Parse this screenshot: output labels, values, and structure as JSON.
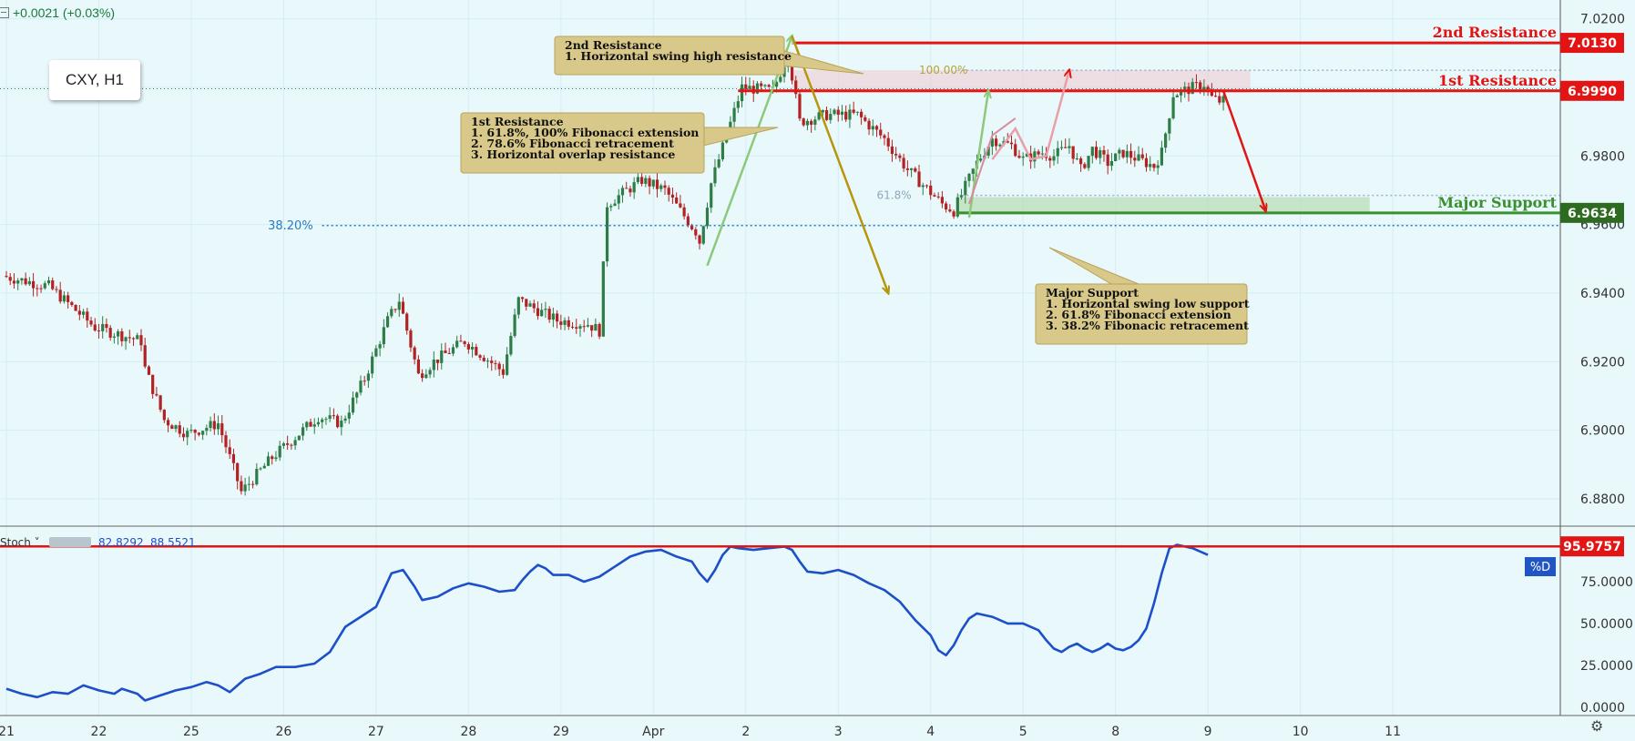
{
  "header": {
    "change": "+0.0021 (+0.03%)"
  },
  "symbol": "CXY, H1",
  "colors": {
    "bg": "#e8f8fb",
    "up": "#2e7d46",
    "down": "#b22222",
    "resistance": "#e31414",
    "support": "#3a8f2e",
    "stoch": "#1d4fc9",
    "fib": "#2a7bbf",
    "note_bg": "#d8c98a",
    "note_border": "#b9a25a"
  },
  "chart_data": {
    "type": "candlestick",
    "symbol": "CXY",
    "timeframe": "H1",
    "ylim": [
      6.872,
      7.0255
    ],
    "y_ticks": [
      "7.0200",
      "7.0000",
      "6.9800",
      "6.9600",
      "6.9400",
      "6.9200",
      "6.9000",
      "6.8800"
    ],
    "x_ticks": [
      {
        "label": "21",
        "idx": 0
      },
      {
        "label": "22",
        "idx": 24
      },
      {
        "label": "25",
        "idx": 48
      },
      {
        "label": "26",
        "idx": 72
      },
      {
        "label": "27",
        "idx": 96
      },
      {
        "label": "28",
        "idx": 120
      },
      {
        "label": "29",
        "idx": 144
      },
      {
        "label": "Apr",
        "idx": 168
      },
      {
        "label": "2",
        "idx": 192
      },
      {
        "label": "3",
        "idx": 216
      },
      {
        "label": "4",
        "idx": 240
      },
      {
        "label": "5",
        "idx": 264
      },
      {
        "label": "8",
        "idx": 288
      },
      {
        "label": "9",
        "idx": 312
      },
      {
        "label": "10",
        "idx": 336
      },
      {
        "label": "11",
        "idx": 360
      }
    ],
    "price_path": [
      [
        0,
        6.945
      ],
      [
        12,
        6.942
      ],
      [
        24,
        6.93
      ],
      [
        36,
        6.926
      ],
      [
        37,
        6.918
      ],
      [
        42,
        6.903
      ],
      [
        48,
        6.899
      ],
      [
        56,
        6.902
      ],
      [
        62,
        6.882
      ],
      [
        70,
        6.892
      ],
      [
        82,
        6.904
      ],
      [
        88,
        6.902
      ],
      [
        94,
        6.915
      ],
      [
        100,
        6.932
      ],
      [
        103,
        6.938
      ],
      [
        108,
        6.916
      ],
      [
        112,
        6.92
      ],
      [
        120,
        6.926
      ],
      [
        130,
        6.917
      ],
      [
        134,
        6.938
      ],
      [
        144,
        6.932
      ],
      [
        152,
        6.931
      ],
      [
        155,
        6.929
      ],
      [
        157,
        6.966
      ],
      [
        166,
        6.973
      ],
      [
        172,
        6.97
      ],
      [
        180,
        6.958
      ],
      [
        181,
        6.955
      ],
      [
        184,
        6.972
      ],
      [
        192,
        7.0
      ],
      [
        200,
        6.999
      ],
      [
        204,
        7.01
      ],
      [
        207,
        6.99
      ],
      [
        214,
        6.992
      ],
      [
        222,
        6.992
      ],
      [
        229,
        6.985
      ],
      [
        235,
        6.976
      ],
      [
        244,
        6.966
      ],
      [
        247,
        6.964
      ],
      [
        253,
        6.978
      ],
      [
        257,
        6.985
      ],
      [
        262,
        6.983
      ],
      [
        265,
        6.979
      ],
      [
        270,
        6.981
      ],
      [
        273,
        6.98
      ],
      [
        277,
        6.983
      ],
      [
        280,
        6.976
      ],
      [
        283,
        6.982
      ],
      [
        287,
        6.978
      ],
      [
        291,
        6.981
      ],
      [
        295,
        6.979
      ],
      [
        299,
        6.977
      ],
      [
        301,
        6.981
      ],
      [
        304,
        6.998
      ],
      [
        312,
        7.001
      ],
      [
        314,
        6.997
      ],
      [
        316,
        6.996
      ]
    ],
    "levels": [
      {
        "name": "2nd Resistance",
        "price": "7.0130"
      },
      {
        "name": "1st Resistance",
        "price": "6.9990"
      },
      {
        "name": "Major Support",
        "price": "6.9634"
      }
    ],
    "last_price": 6.9996,
    "fib_levels": [
      {
        "label": "38.20%",
        "price": 6.9597
      },
      {
        "label": "61.8%",
        "price": 6.9685
      },
      {
        "label": "100.00%",
        "price": 7.005
      }
    ],
    "annotations": [
      {
        "title": "2nd Resistance",
        "lines": [
          "1. Horizontal swing high resistance"
        ]
      },
      {
        "title": "1st Resistance",
        "lines": [
          "1. 61.8%, 100% Fibonacci extension",
          "2. 78.6% Fibonacci retracement",
          "3. Horizontal overlap resistance"
        ]
      },
      {
        "title": "Major Support",
        "lines": [
          "1. Horizontal swing low support",
          "2. 61.8% Fibonacci extension",
          "3. 38.2% Fibonacic retracement"
        ]
      }
    ],
    "stochastic": {
      "label": "Stoch",
      "values_display": [
        "82.8292",
        "88.5521"
      ],
      "ylim": [
        -5,
        106
      ],
      "y_ticks": [
        "75.0000",
        "50.0000",
        "25.0000",
        "0.0000"
      ],
      "level_label": "95.9757",
      "level_value": 96.1,
      "line_label": "%D",
      "series": [
        [
          0,
          11
        ],
        [
          4,
          8
        ],
        [
          8,
          6
        ],
        [
          12,
          9
        ],
        [
          16,
          8
        ],
        [
          20,
          13
        ],
        [
          24,
          10
        ],
        [
          28,
          8
        ],
        [
          30,
          11
        ],
        [
          34,
          8
        ],
        [
          36,
          4
        ],
        [
          40,
          7
        ],
        [
          44,
          10
        ],
        [
          48,
          12
        ],
        [
          52,
          15
        ],
        [
          55,
          13
        ],
        [
          58,
          9
        ],
        [
          62,
          17
        ],
        [
          66,
          20
        ],
        [
          70,
          24
        ],
        [
          75,
          24
        ],
        [
          80,
          26
        ],
        [
          84,
          33
        ],
        [
          88,
          48
        ],
        [
          92,
          54
        ],
        [
          96,
          60
        ],
        [
          98,
          70
        ],
        [
          100,
          80
        ],
        [
          103,
          82
        ],
        [
          106,
          72
        ],
        [
          108,
          64
        ],
        [
          112,
          66
        ],
        [
          116,
          71
        ],
        [
          120,
          74
        ],
        [
          124,
          72
        ],
        [
          128,
          69
        ],
        [
          132,
          70
        ],
        [
          134,
          76
        ],
        [
          136,
          81
        ],
        [
          138,
          85
        ],
        [
          140,
          83
        ],
        [
          142,
          79
        ],
        [
          146,
          79
        ],
        [
          150,
          75
        ],
        [
          154,
          78
        ],
        [
          158,
          84
        ],
        [
          162,
          90
        ],
        [
          166,
          93
        ],
        [
          170,
          94
        ],
        [
          174,
          90
        ],
        [
          178,
          87
        ],
        [
          180,
          80
        ],
        [
          182,
          75
        ],
        [
          184,
          82
        ],
        [
          186,
          91
        ],
        [
          188,
          96
        ],
        [
          190,
          95
        ],
        [
          194,
          94
        ],
        [
          198,
          95
        ],
        [
          202,
          96
        ],
        [
          204,
          94
        ],
        [
          206,
          87
        ],
        [
          208,
          81
        ],
        [
          212,
          80
        ],
        [
          216,
          82
        ],
        [
          220,
          79
        ],
        [
          224,
          74
        ],
        [
          228,
          70
        ],
        [
          232,
          63
        ],
        [
          236,
          52
        ],
        [
          240,
          43
        ],
        [
          242,
          34
        ],
        [
          244,
          31
        ],
        [
          246,
          37
        ],
        [
          248,
          46
        ],
        [
          250,
          53
        ],
        [
          252,
          56
        ],
        [
          256,
          54
        ],
        [
          260,
          50
        ],
        [
          264,
          50
        ],
        [
          268,
          46
        ],
        [
          270,
          40
        ],
        [
          272,
          35
        ],
        [
          274,
          33
        ],
        [
          276,
          36
        ],
        [
          278,
          38
        ],
        [
          280,
          35
        ],
        [
          282,
          33
        ],
        [
          284,
          35
        ],
        [
          286,
          38
        ],
        [
          288,
          35
        ],
        [
          290,
          34
        ],
        [
          292,
          36
        ],
        [
          294,
          40
        ],
        [
          296,
          47
        ],
        [
          298,
          62
        ],
        [
          300,
          80
        ],
        [
          302,
          95
        ],
        [
          304,
          97
        ],
        [
          308,
          95
        ],
        [
          312,
          91
        ]
      ]
    },
    "arrows": [
      {
        "color": "green",
        "from": [
          182,
          6.948
        ],
        "to": [
          204,
          7.015
        ]
      },
      {
        "color": "green",
        "from": [
          250,
          6.962
        ],
        "to": [
          255,
          6.999
        ]
      },
      {
        "color": "olive",
        "from": [
          204,
          7.015
        ],
        "to": [
          229,
          6.94
        ]
      },
      {
        "color": "red",
        "from": [
          316,
          6.999
        ],
        "to": [
          327,
          6.964
        ]
      }
    ]
  }
}
